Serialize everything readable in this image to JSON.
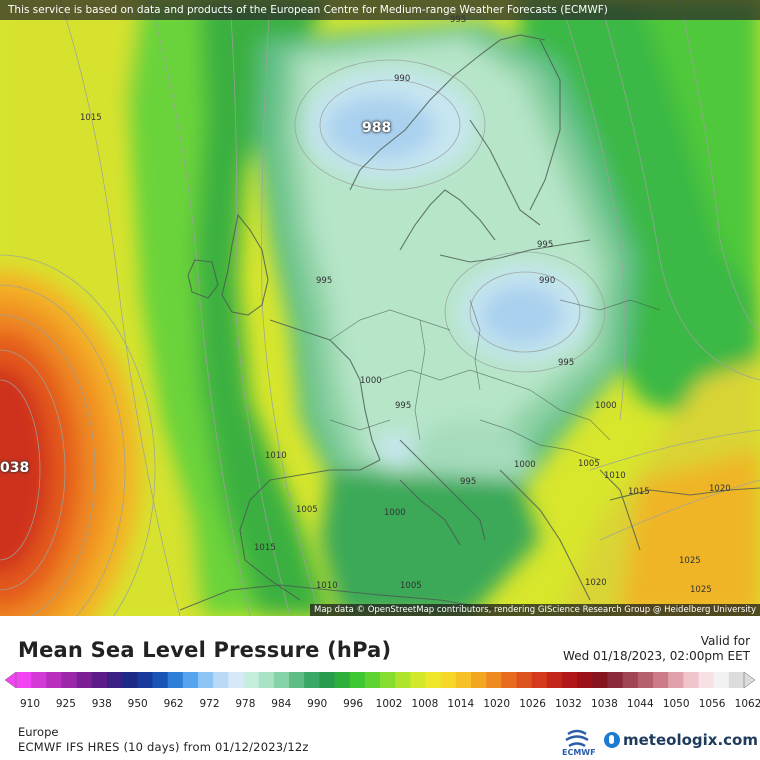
{
  "banner": "This service is based on data and products of the European Centre for Medium-range Weather Forecasts (ECMWF)",
  "map_attribution": "Map data © OpenStreetMap contributors, rendering GIScience Research Group @ Heidelberg University",
  "isobar_labels": [
    "995",
    "990",
    "1015",
    "995",
    "995",
    "990",
    "995",
    "1000",
    "995",
    "1000",
    "1010",
    "1005",
    "1010",
    "1015",
    "1000",
    "995",
    "1005",
    "1000",
    "1020",
    "1015",
    "1010",
    "1005",
    "1020",
    "1025",
    "1025"
  ],
  "extremes": [
    {
      "label": "988",
      "kind": "low"
    },
    {
      "label": "038",
      "kind": "high"
    }
  ],
  "title": "Mean Sea Level Pressure (hPa)",
  "valid_label": "Valid for",
  "valid_date": "Wed 01/18/2023, 02:00pm EET",
  "colorbar": {
    "unit": "hPa",
    "min": 910,
    "max": 1062,
    "ticks": [
      "910",
      "925",
      "938",
      "950",
      "962",
      "972",
      "978",
      "984",
      "990",
      "996",
      "1002",
      "1008",
      "1014",
      "1020",
      "1026",
      "1032",
      "1038",
      "1044",
      "1050",
      "1056",
      "1062"
    ],
    "colors": [
      "#f244f2",
      "#d33ad6",
      "#b82fc0",
      "#9a27aa",
      "#7a1f94",
      "#5b1c8a",
      "#3b1f85",
      "#1c2a86",
      "#173a9c",
      "#1a55b5",
      "#2f7fd6",
      "#56a3ee",
      "#8cc4f4",
      "#b9daf7",
      "#d7e9f8",
      "#c5eedf",
      "#a8e3c6",
      "#85d3a6",
      "#5fbd84",
      "#3aa868",
      "#2a9a4e",
      "#2eae3c",
      "#3ec734",
      "#5fd332",
      "#86dd30",
      "#aee32e",
      "#d2e82c",
      "#eee72b",
      "#f5d82a",
      "#f6c027",
      "#f3a524",
      "#ef8921",
      "#e86c1f",
      "#de521d",
      "#d23a1b",
      "#c3251a",
      "#b21718",
      "#9c1117",
      "#861421",
      "#8a2a3a",
      "#a04554",
      "#b65f6d",
      "#cc7b88",
      "#e0a1ab",
      "#efc5cb",
      "#f7e1e4",
      "#f2f2f2",
      "#dcdcdc"
    ]
  },
  "region": "Europe",
  "model_run": "ECMWF IFS HRES (10 days) from 01/12/2023/12z",
  "logos": {
    "ecmwf": "ECMWF",
    "meteologix": "meteologix.com"
  }
}
